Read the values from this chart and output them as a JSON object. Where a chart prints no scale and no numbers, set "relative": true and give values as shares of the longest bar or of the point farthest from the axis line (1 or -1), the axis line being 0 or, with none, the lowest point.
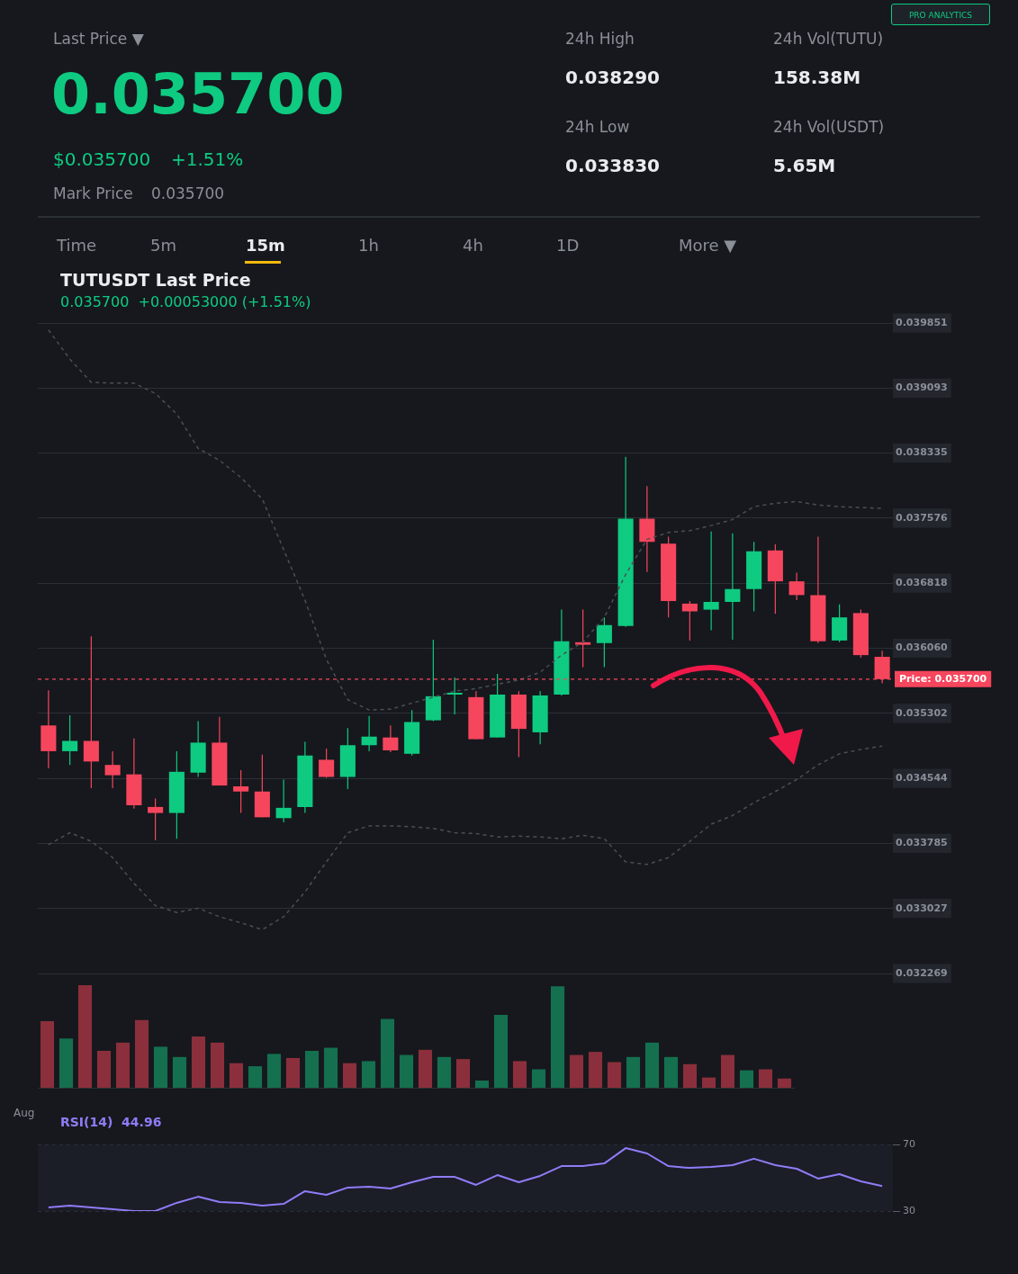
{
  "chart_data": [
    {
      "type": "other",
      "annotations": [
        "Last Price ▼",
        "0.035700",
        "$0.035700",
        "+1.51%",
        "Mark Price",
        "0.035700",
        "24h High",
        "0.038290",
        "24h Low",
        "0.033830",
        "24h Vol(TUTU)",
        "158.38M",
        "24h Vol(USDT)",
        "5.65M",
        "PRO ANALYTICS",
        "Time",
        "5m",
        "15m",
        "1h",
        "4h",
        "1D",
        "More ▼"
      ]
    },
    {
      "type": "candlestick",
      "title": "TUTUSDT Last Price",
      "subtitle": "0.035700  +0.00053000 (+1.51%)",
      "categories": [
        null,
        null,
        null,
        null,
        null,
        null,
        null,
        null,
        null,
        null,
        null,
        null,
        null,
        null,
        null,
        null,
        null,
        null,
        null,
        null,
        null,
        null,
        null,
        null,
        null,
        null,
        null,
        null,
        null,
        null,
        null,
        null,
        null,
        null,
        null,
        null,
        null,
        null,
        null,
        null
      ],
      "ohlc": [
        [
          0.03516,
          0.03557,
          0.03466,
          0.03486
        ],
        [
          0.03486,
          0.03528,
          0.0347,
          0.03498
        ],
        [
          0.03498,
          0.0362,
          0.03443,
          0.03474
        ],
        [
          0.0347,
          0.03486,
          0.03443,
          0.03458
        ],
        [
          0.03459,
          0.03501,
          0.03419,
          0.03423
        ],
        [
          0.03421,
          0.03431,
          0.03382,
          0.03414
        ],
        [
          0.03414,
          0.03486,
          0.03384,
          0.03462
        ],
        [
          0.03461,
          0.03521,
          0.03456,
          0.03496
        ],
        [
          0.03496,
          0.03526,
          0.03446,
          0.03446
        ],
        [
          0.03445,
          0.03464,
          0.03414,
          0.03439
        ],
        [
          0.03439,
          0.03482,
          0.03409,
          0.03409
        ],
        [
          0.03408,
          0.03453,
          0.03403,
          0.0342
        ],
        [
          0.03421,
          0.03497,
          0.03414,
          0.03481
        ],
        [
          0.03476,
          0.03489,
          0.03455,
          0.03456
        ],
        [
          0.03456,
          0.03513,
          0.03442,
          0.03493
        ],
        [
          0.03493,
          0.03527,
          0.03486,
          0.03503
        ],
        [
          0.03502,
          0.03516,
          0.03485,
          0.03487
        ],
        [
          0.03483,
          0.03534,
          0.03481,
          0.0352
        ],
        [
          0.03522,
          0.03616,
          0.03521,
          0.0355
        ],
        [
          0.03552,
          0.03572,
          0.03529,
          0.03554
        ],
        [
          0.03549,
          0.03556,
          0.035,
          0.035
        ],
        [
          0.03502,
          0.03576,
          0.03502,
          0.03552
        ],
        [
          0.03552,
          0.03556,
          0.03479,
          0.03512
        ],
        [
          0.03508,
          0.03556,
          0.03494,
          0.03551
        ],
        [
          0.03552,
          0.03651,
          0.03551,
          0.03614
        ],
        [
          0.03613,
          0.03651,
          0.03584,
          0.0361
        ],
        [
          0.03612,
          0.03642,
          0.03584,
          0.03633
        ],
        [
          0.03632,
          0.03829,
          0.03631,
          0.03757
        ],
        [
          0.03757,
          0.03795,
          0.03695,
          0.0373
        ],
        [
          0.03728,
          0.03736,
          0.03642,
          0.03661
        ],
        [
          0.03658,
          0.03661,
          0.03615,
          0.03649
        ],
        [
          0.03651,
          0.03742,
          0.03627,
          0.0366
        ],
        [
          0.0366,
          0.0374,
          0.03616,
          0.03675
        ],
        [
          0.03675,
          0.0373,
          0.03649,
          0.03719
        ],
        [
          0.0372,
          0.03727,
          0.03646,
          0.03684
        ],
        [
          0.03684,
          0.03694,
          0.03662,
          0.03668
        ],
        [
          0.03668,
          0.03736,
          0.03612,
          0.03614
        ],
        [
          0.03615,
          0.03657,
          0.03613,
          0.03642
        ],
        [
          0.03647,
          0.03651,
          0.03595,
          0.03598
        ],
        [
          0.03596,
          0.03603,
          0.03565,
          0.0357
        ]
      ],
      "colors": [
        "#f6465d",
        "#0ecb81",
        "#f6465d",
        "#f6465d",
        "#f6465d",
        "#f6465d",
        "#0ecb81",
        "#0ecb81",
        "#f6465d",
        "#f6465d",
        "#f6465d",
        "#0ecb81",
        "#0ecb81",
        "#f6465d",
        "#0ecb81",
        "#0ecb81",
        "#f6465d",
        "#0ecb81",
        "#0ecb81",
        "#0ecb81",
        "#f6465d",
        "#0ecb81",
        "#f6465d",
        "#0ecb81",
        "#0ecb81",
        "#f6465d",
        "#0ecb81",
        "#0ecb81",
        "#f6465d",
        "#f6465d",
        "#f6465d",
        "#0ecb81",
        "#0ecb81",
        "#0ecb81",
        "#f6465d",
        "#f6465d",
        "#f6465d",
        "#0ecb81",
        "#f6465d",
        "#f6465d"
      ],
      "series": [
        {
          "type": "line",
          "color": "#4a4e57",
          "values": [
            0.03977,
            0.03943,
            0.03916,
            0.03915,
            0.03915,
            0.03903,
            0.03879,
            0.03839,
            0.03825,
            0.03805,
            0.0378,
            0.03721,
            0.03662,
            0.03593,
            0.03546,
            0.03534,
            0.03535,
            0.03542,
            0.03549,
            0.03556,
            0.03559,
            0.03564,
            0.03569,
            0.03578,
            0.03598,
            0.03613,
            0.03642,
            0.03692,
            0.03733,
            0.03741,
            0.03743,
            0.03749,
            0.03756,
            0.03771,
            0.03775,
            0.03777,
            0.03773,
            0.03771,
            0.0377,
            0.03769
          ]
        },
        {
          "type": "line",
          "color": "#4a4e57",
          "values": [
            0.03377,
            0.03391,
            0.03381,
            0.03362,
            0.03332,
            0.03306,
            0.03298,
            0.03303,
            0.03293,
            0.03286,
            0.03278,
            0.03293,
            0.03322,
            0.03357,
            0.03391,
            0.03399,
            0.03399,
            0.03398,
            0.03396,
            0.03391,
            0.0339,
            0.03386,
            0.03387,
            0.03386,
            0.03384,
            0.03388,
            0.03384,
            0.03357,
            0.03354,
            0.03362,
            0.03381,
            0.03401,
            0.03411,
            0.03426,
            0.03439,
            0.03453,
            0.0347,
            0.03483,
            0.03488,
            0.03492
          ]
        }
      ],
      "ylim": [
        0.032269,
        0.039851
      ],
      "yticks": [
        0.032269,
        0.033027,
        0.033785,
        0.034544,
        0.035302,
        {
          "value": 0.03606,
          "label": "0.036060"
        },
        0.036818,
        0.037576,
        0.038335,
        0.039093,
        0.039851
      ],
      "grid": "y",
      "tick_labels": "y",
      "line_style": "dashed",
      "marker": "none",
      "ref_lines": [
        {
          "axis": "y",
          "value": 0.0357,
          "label": "Price: 0.035700",
          "color": "#f6465d",
          "line_style": "dashed"
        }
      ]
    },
    {
      "type": "bar",
      "relative": true,
      "categories": [
        null,
        null,
        null,
        null,
        null,
        null,
        null,
        null,
        null,
        null,
        null,
        null,
        null,
        null,
        null,
        null,
        null,
        null,
        null,
        null,
        null,
        null,
        null,
        null,
        null,
        null,
        null,
        null,
        null,
        null,
        null,
        null,
        null,
        null,
        null,
        null,
        null,
        null,
        null,
        null
      ],
      "values": [
        0.65,
        0.48,
        1.0,
        0.36,
        0.44,
        0.66,
        0.4,
        0.3,
        0.5,
        0.44,
        0.24,
        0.21,
        0.33,
        0.29,
        0.36,
        0.39,
        0.24,
        0.26,
        0.67,
        0.32,
        0.37,
        0.3,
        0.28,
        0.07,
        0.71,
        0.26,
        0.18,
        0.99,
        0.32,
        0.35,
        0.25,
        0.3,
        0.44,
        0.3,
        0.23,
        0.1,
        0.32,
        0.17,
        0.18,
        0.09
      ],
      "colors": [
        "#8b2f3c",
        "#15704f",
        "#8b2f3c",
        "#8b2f3c",
        "#8b2f3c",
        "#8b2f3c",
        "#15704f",
        "#15704f",
        "#8b2f3c",
        "#8b2f3c",
        "#8b2f3c",
        "#15704f",
        "#15704f",
        "#8b2f3c",
        "#15704f",
        "#15704f",
        "#8b2f3c",
        "#15704f",
        "#15704f",
        "#15704f",
        "#8b2f3c",
        "#15704f",
        "#8b2f3c",
        "#15704f",
        "#15704f",
        "#8b2f3c",
        "#15704f",
        "#15704f",
        "#8b2f3c",
        "#8b2f3c",
        "#8b2f3c",
        "#15704f",
        "#15704f",
        "#15704f",
        "#8b2f3c",
        "#8b2f3c",
        "#8b2f3c",
        "#15704f",
        "#8b2f3c",
        "#8b2f3c"
      ],
      "tick_labels": false
    },
    {
      "type": "line",
      "title": "RSI(14)  44.96",
      "annotations": [
        "Aug"
      ],
      "categories": [
        null,
        null,
        null,
        null,
        null,
        null,
        null,
        null,
        null,
        null,
        null,
        null,
        null,
        null,
        null,
        null,
        null,
        null,
        null,
        null,
        null,
        null,
        null,
        null,
        null,
        null,
        null,
        null,
        null,
        null,
        null,
        null,
        null,
        null,
        null,
        null,
        null,
        null,
        null,
        null
      ],
      "series": [
        {
          "color": "#8f7cf7",
          "values": [
            32.2,
            33.2,
            32.2,
            31.1,
            30,
            30,
            34.9,
            38.6,
            35.4,
            34.9,
            33.2,
            34.3,
            41.9,
            39.7,
            44.1,
            44.6,
            43.5,
            47.3,
            50.5,
            50.5,
            45.7,
            51.6,
            47.3,
            51.1,
            57,
            57,
            58.6,
            67.8,
            64.6,
            57,
            55.9,
            56.5,
            57.6,
            61.4,
            57.6,
            55.4,
            49.5,
            52.2,
            47.8,
            45
          ]
        }
      ],
      "ylim": [
        30,
        70
      ],
      "yticks": [
        30,
        70
      ],
      "grid": "y",
      "tick_labels": "y",
      "marker": "none"
    }
  ]
}
